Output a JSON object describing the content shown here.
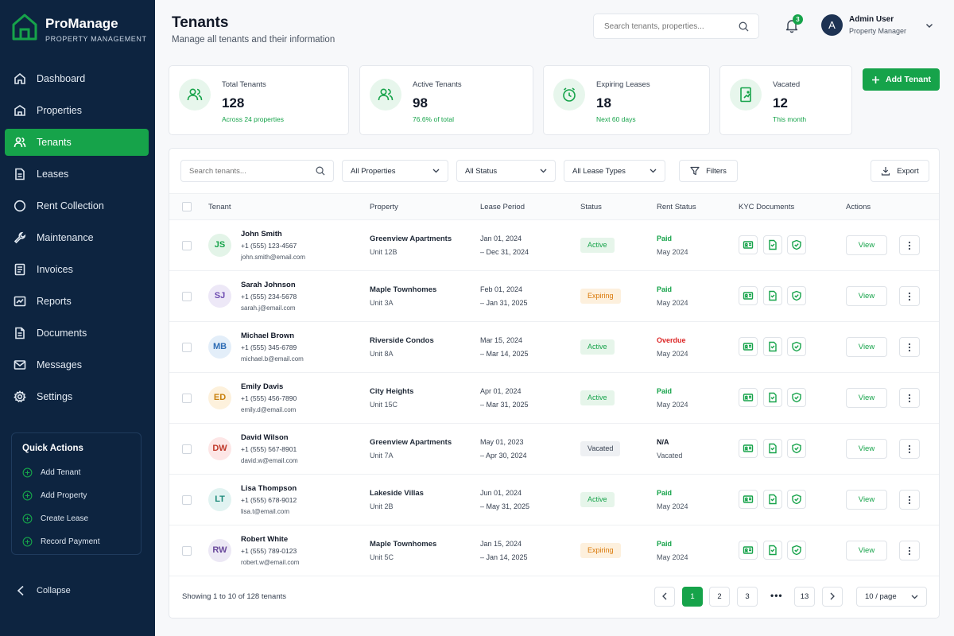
{
  "brand": {
    "name": "ProManage",
    "subtitle": "PROPERTY MANAGEMENT"
  },
  "colors": {
    "sidebar": "#0d2440",
    "accent": "#16a34a",
    "danger": "#dc2626",
    "warning": "#d97706"
  },
  "sidebar": {
    "items": [
      {
        "label": "Dashboard",
        "icon": "home-icon"
      },
      {
        "label": "Properties",
        "icon": "building-icon"
      },
      {
        "label": "Tenants",
        "icon": "users-icon",
        "active": true
      },
      {
        "label": "Leases",
        "icon": "file-icon"
      },
      {
        "label": "Rent Collection",
        "icon": "circle-icon"
      },
      {
        "label": "Maintenance",
        "icon": "wrench-icon"
      },
      {
        "label": "Invoices",
        "icon": "invoice-icon"
      },
      {
        "label": "Reports",
        "icon": "report-icon"
      },
      {
        "label": "Documents",
        "icon": "document-icon"
      },
      {
        "label": "Messages",
        "icon": "mail-icon"
      },
      {
        "label": "Settings",
        "icon": "gear-icon"
      }
    ],
    "quick_actions": {
      "title": "Quick Actions",
      "items": [
        "Add Tenant",
        "Add Property",
        "Create Lease",
        "Record Payment"
      ]
    },
    "collapse_label": "Collapse"
  },
  "header": {
    "title": "Tenants",
    "subtitle": "Manage all tenants and their information",
    "search_placeholder": "Search tenants, properties...",
    "notification_count": "3",
    "user": {
      "initial": "A",
      "name": "Admin User",
      "role": "Property Manager"
    }
  },
  "stats": [
    {
      "label": "Total Tenants",
      "value": "128",
      "sub": "Across 24 properties",
      "icon": "users-icon"
    },
    {
      "label": "Active Tenants",
      "value": "98",
      "sub": "76.6% of total",
      "icon": "user-check-icon"
    },
    {
      "label": "Expiring Leases",
      "value": "18",
      "sub": "Next 60 days",
      "icon": "clock-icon"
    },
    {
      "label": "Vacated",
      "value": "12",
      "sub": "This month",
      "icon": "door-icon"
    }
  ],
  "add_tenant_label": "Add Tenant",
  "filters": {
    "search_placeholder": "Search tenants...",
    "property": "All Properties",
    "status": "All Status",
    "lease_type": "All Lease Types",
    "filters_label": "Filters",
    "export_label": "Export"
  },
  "table": {
    "columns": [
      "Tenant",
      "Property",
      "Lease Period",
      "Status",
      "Rent Status",
      "KYC Documents",
      "Actions"
    ],
    "view_label": "View",
    "rows": [
      {
        "initials": "JS",
        "name": "John Smith",
        "phone": "+1 (555) 123-4567",
        "email": "john.smith@email.com",
        "property": "Greenview Apartments",
        "unit": "Unit 12B",
        "lease_start": "Jan 01, 2024",
        "lease_end": "– Dec 31, 2024",
        "status": "Active",
        "rent_status": "Paid",
        "rent_month": "May 2024"
      },
      {
        "initials": "SJ",
        "name": "Sarah Johnson",
        "phone": "+1 (555) 234-5678",
        "email": "sarah.j@email.com",
        "property": "Maple Townhomes",
        "unit": "Unit 3A",
        "lease_start": "Feb 01, 2024",
        "lease_end": "– Jan 31, 2025",
        "status": "Expiring",
        "rent_status": "Paid",
        "rent_month": "May 2024"
      },
      {
        "initials": "MB",
        "name": "Michael Brown",
        "phone": "+1 (555) 345-6789",
        "email": "michael.b@email.com",
        "property": "Riverside Condos",
        "unit": "Unit 8A",
        "lease_start": "Mar 15, 2024",
        "lease_end": "– Mar 14, 2025",
        "status": "Active",
        "rent_status": "Overdue",
        "rent_month": "May 2024"
      },
      {
        "initials": "ED",
        "name": "Emily Davis",
        "phone": "+1 (555) 456-7890",
        "email": "emily.d@email.com",
        "property": "City Heights",
        "unit": "Unit 15C",
        "lease_start": "Apr 01, 2024",
        "lease_end": "– Mar 31, 2025",
        "status": "Active",
        "rent_status": "Paid",
        "rent_month": "May 2024"
      },
      {
        "initials": "DW",
        "name": "David Wilson",
        "phone": "+1 (555) 567-8901",
        "email": "david.w@email.com",
        "property": "Greenview Apartments",
        "unit": "Unit 7A",
        "lease_start": "May 01, 2023",
        "lease_end": "– Apr 30, 2024",
        "status": "Vacated",
        "rent_status": "N/A",
        "rent_month": "Vacated"
      },
      {
        "initials": "LT",
        "name": "Lisa Thompson",
        "phone": "+1 (555) 678-9012",
        "email": "lisa.t@email.com",
        "property": "Lakeside Villas",
        "unit": "Unit 2B",
        "lease_start": "Jun 01, 2024",
        "lease_end": "– May 31, 2025",
        "status": "Active",
        "rent_status": "Paid",
        "rent_month": "May 2024"
      },
      {
        "initials": "RW",
        "name": "Robert White",
        "phone": "+1 (555) 789-0123",
        "email": "robert.w@email.com",
        "property": "Maple Townhomes",
        "unit": "Unit 5C",
        "lease_start": "Jan 15, 2024",
        "lease_end": "– Jan 14, 2025",
        "status": "Expiring",
        "rent_status": "Paid",
        "rent_month": "May 2024"
      }
    ]
  },
  "pagination": {
    "summary": "Showing 1 to 10 of 128 tenants",
    "pages": [
      "1",
      "2",
      "3"
    ],
    "ellipsis": "•••",
    "last": "13",
    "per_page": "10 / page"
  }
}
